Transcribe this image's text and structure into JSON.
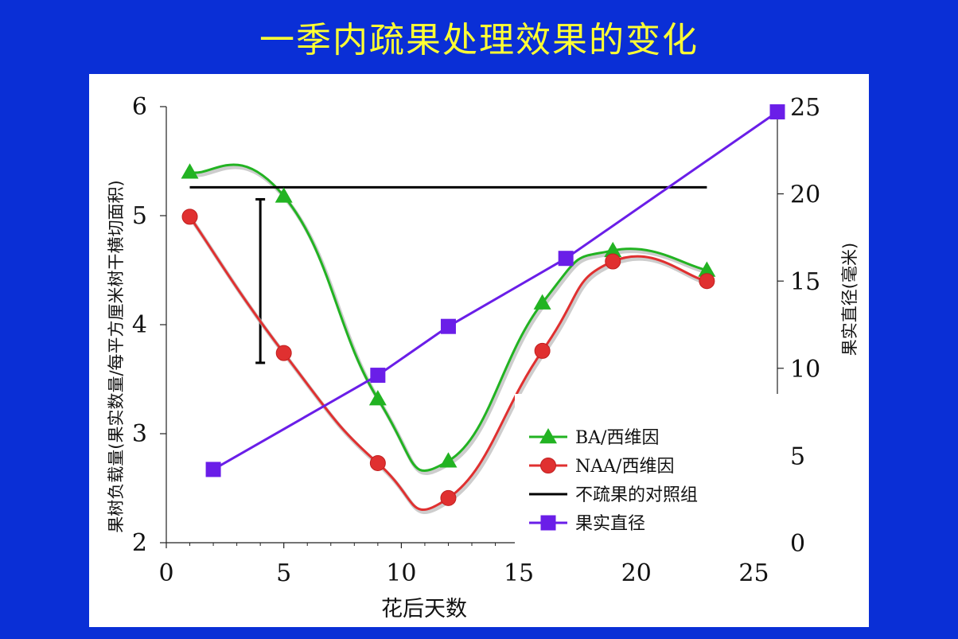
{
  "title": "一季内疏果处理效果的变化",
  "colors": {
    "background": "#0a2fd6",
    "title": "#ffff33",
    "ba": "#22b322",
    "naa": "#e03030",
    "control": "#000000",
    "diameter": "#6a1ee8"
  },
  "chart_data": {
    "type": "line",
    "xlabel": "花后天数",
    "ylabel_left": "果树负载量(果实数量/每平方厘米树干横切面积)",
    "ylabel_right": "果实直径(毫米)",
    "xlim": [
      0,
      26
    ],
    "ylim_left": [
      2,
      6
    ],
    "ylim_right": [
      0,
      25
    ],
    "x_ticks": [
      "0",
      "5",
      "10",
      "15",
      "20",
      "25"
    ],
    "y_ticks_left": [
      "2",
      "3",
      "4",
      "5",
      "6"
    ],
    "y_ticks_right": [
      "0",
      "5",
      "10",
      "15",
      "20",
      "25"
    ],
    "series": [
      {
        "name": "BA/西维因",
        "axis": "left",
        "marker": "triangle",
        "x": [
          1,
          5,
          9,
          12,
          16,
          19,
          23
        ],
        "y": [
          5.4,
          5.18,
          3.32,
          2.75,
          4.2,
          4.68,
          4.5
        ]
      },
      {
        "name": "NAA/西维因",
        "axis": "left",
        "marker": "circle",
        "x": [
          1,
          5,
          9,
          12,
          16,
          19,
          23
        ],
        "y": [
          4.99,
          3.74,
          2.73,
          2.41,
          3.76,
          4.58,
          4.4
        ]
      },
      {
        "name": "不疏果的对照组",
        "axis": "left",
        "marker": "none",
        "x": [
          1,
          23
        ],
        "y": [
          5.26,
          5.26
        ]
      },
      {
        "name": "果实直径",
        "axis": "right",
        "marker": "square",
        "x": [
          2,
          9,
          12,
          17,
          26
        ],
        "y": [
          4.2,
          9.6,
          12.4,
          16.3,
          24.7
        ]
      }
    ],
    "error_bar": {
      "x": 4,
      "y_low": 3.65,
      "y_high": 5.15,
      "axis": "left"
    },
    "legend_position": "bottom-right"
  }
}
